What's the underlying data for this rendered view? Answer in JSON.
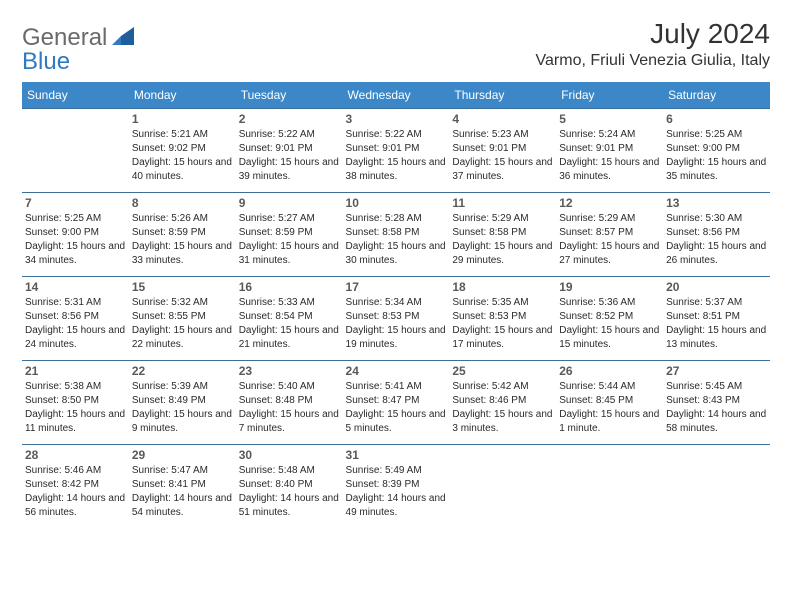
{
  "brand": {
    "part1": "General",
    "part2": "Blue"
  },
  "title": "July 2024",
  "location": "Varmo, Friuli Venezia Giulia, Italy",
  "calendar": {
    "header_bg": "#3b87c8",
    "header_text": "#ffffff",
    "row_border": "#3b6f9a",
    "daynum_color": "#595959",
    "cell_text_color": "#2a2a2a",
    "cell_font_size": 10,
    "header_font_size": 12
  },
  "dayNames": [
    "Sunday",
    "Monday",
    "Tuesday",
    "Wednesday",
    "Thursday",
    "Friday",
    "Saturday"
  ],
  "weeks": [
    [
      {
        "n": "",
        "sunrise": "",
        "sunset": "",
        "daylight": ""
      },
      {
        "n": "1",
        "sunrise": "5:21 AM",
        "sunset": "9:02 PM",
        "daylight": "15 hours and 40 minutes."
      },
      {
        "n": "2",
        "sunrise": "5:22 AM",
        "sunset": "9:01 PM",
        "daylight": "15 hours and 39 minutes."
      },
      {
        "n": "3",
        "sunrise": "5:22 AM",
        "sunset": "9:01 PM",
        "daylight": "15 hours and 38 minutes."
      },
      {
        "n": "4",
        "sunrise": "5:23 AM",
        "sunset": "9:01 PM",
        "daylight": "15 hours and 37 minutes."
      },
      {
        "n": "5",
        "sunrise": "5:24 AM",
        "sunset": "9:01 PM",
        "daylight": "15 hours and 36 minutes."
      },
      {
        "n": "6",
        "sunrise": "5:25 AM",
        "sunset": "9:00 PM",
        "daylight": "15 hours and 35 minutes."
      }
    ],
    [
      {
        "n": "7",
        "sunrise": "5:25 AM",
        "sunset": "9:00 PM",
        "daylight": "15 hours and 34 minutes."
      },
      {
        "n": "8",
        "sunrise": "5:26 AM",
        "sunset": "8:59 PM",
        "daylight": "15 hours and 33 minutes."
      },
      {
        "n": "9",
        "sunrise": "5:27 AM",
        "sunset": "8:59 PM",
        "daylight": "15 hours and 31 minutes."
      },
      {
        "n": "10",
        "sunrise": "5:28 AM",
        "sunset": "8:58 PM",
        "daylight": "15 hours and 30 minutes."
      },
      {
        "n": "11",
        "sunrise": "5:29 AM",
        "sunset": "8:58 PM",
        "daylight": "15 hours and 29 minutes."
      },
      {
        "n": "12",
        "sunrise": "5:29 AM",
        "sunset": "8:57 PM",
        "daylight": "15 hours and 27 minutes."
      },
      {
        "n": "13",
        "sunrise": "5:30 AM",
        "sunset": "8:56 PM",
        "daylight": "15 hours and 26 minutes."
      }
    ],
    [
      {
        "n": "14",
        "sunrise": "5:31 AM",
        "sunset": "8:56 PM",
        "daylight": "15 hours and 24 minutes."
      },
      {
        "n": "15",
        "sunrise": "5:32 AM",
        "sunset": "8:55 PM",
        "daylight": "15 hours and 22 minutes."
      },
      {
        "n": "16",
        "sunrise": "5:33 AM",
        "sunset": "8:54 PM",
        "daylight": "15 hours and 21 minutes."
      },
      {
        "n": "17",
        "sunrise": "5:34 AM",
        "sunset": "8:53 PM",
        "daylight": "15 hours and 19 minutes."
      },
      {
        "n": "18",
        "sunrise": "5:35 AM",
        "sunset": "8:53 PM",
        "daylight": "15 hours and 17 minutes."
      },
      {
        "n": "19",
        "sunrise": "5:36 AM",
        "sunset": "8:52 PM",
        "daylight": "15 hours and 15 minutes."
      },
      {
        "n": "20",
        "sunrise": "5:37 AM",
        "sunset": "8:51 PM",
        "daylight": "15 hours and 13 minutes."
      }
    ],
    [
      {
        "n": "21",
        "sunrise": "5:38 AM",
        "sunset": "8:50 PM",
        "daylight": "15 hours and 11 minutes."
      },
      {
        "n": "22",
        "sunrise": "5:39 AM",
        "sunset": "8:49 PM",
        "daylight": "15 hours and 9 minutes."
      },
      {
        "n": "23",
        "sunrise": "5:40 AM",
        "sunset": "8:48 PM",
        "daylight": "15 hours and 7 minutes."
      },
      {
        "n": "24",
        "sunrise": "5:41 AM",
        "sunset": "8:47 PM",
        "daylight": "15 hours and 5 minutes."
      },
      {
        "n": "25",
        "sunrise": "5:42 AM",
        "sunset": "8:46 PM",
        "daylight": "15 hours and 3 minutes."
      },
      {
        "n": "26",
        "sunrise": "5:44 AM",
        "sunset": "8:45 PM",
        "daylight": "15 hours and 1 minute."
      },
      {
        "n": "27",
        "sunrise": "5:45 AM",
        "sunset": "8:43 PM",
        "daylight": "14 hours and 58 minutes."
      }
    ],
    [
      {
        "n": "28",
        "sunrise": "5:46 AM",
        "sunset": "8:42 PM",
        "daylight": "14 hours and 56 minutes."
      },
      {
        "n": "29",
        "sunrise": "5:47 AM",
        "sunset": "8:41 PM",
        "daylight": "14 hours and 54 minutes."
      },
      {
        "n": "30",
        "sunrise": "5:48 AM",
        "sunset": "8:40 PM",
        "daylight": "14 hours and 51 minutes."
      },
      {
        "n": "31",
        "sunrise": "5:49 AM",
        "sunset": "8:39 PM",
        "daylight": "14 hours and 49 minutes."
      },
      {
        "n": "",
        "sunrise": "",
        "sunset": "",
        "daylight": ""
      },
      {
        "n": "",
        "sunrise": "",
        "sunset": "",
        "daylight": ""
      },
      {
        "n": "",
        "sunrise": "",
        "sunset": "",
        "daylight": ""
      }
    ]
  ],
  "labels": {
    "sunrise": "Sunrise: ",
    "sunset": "Sunset: ",
    "daylight": "Daylight: "
  }
}
